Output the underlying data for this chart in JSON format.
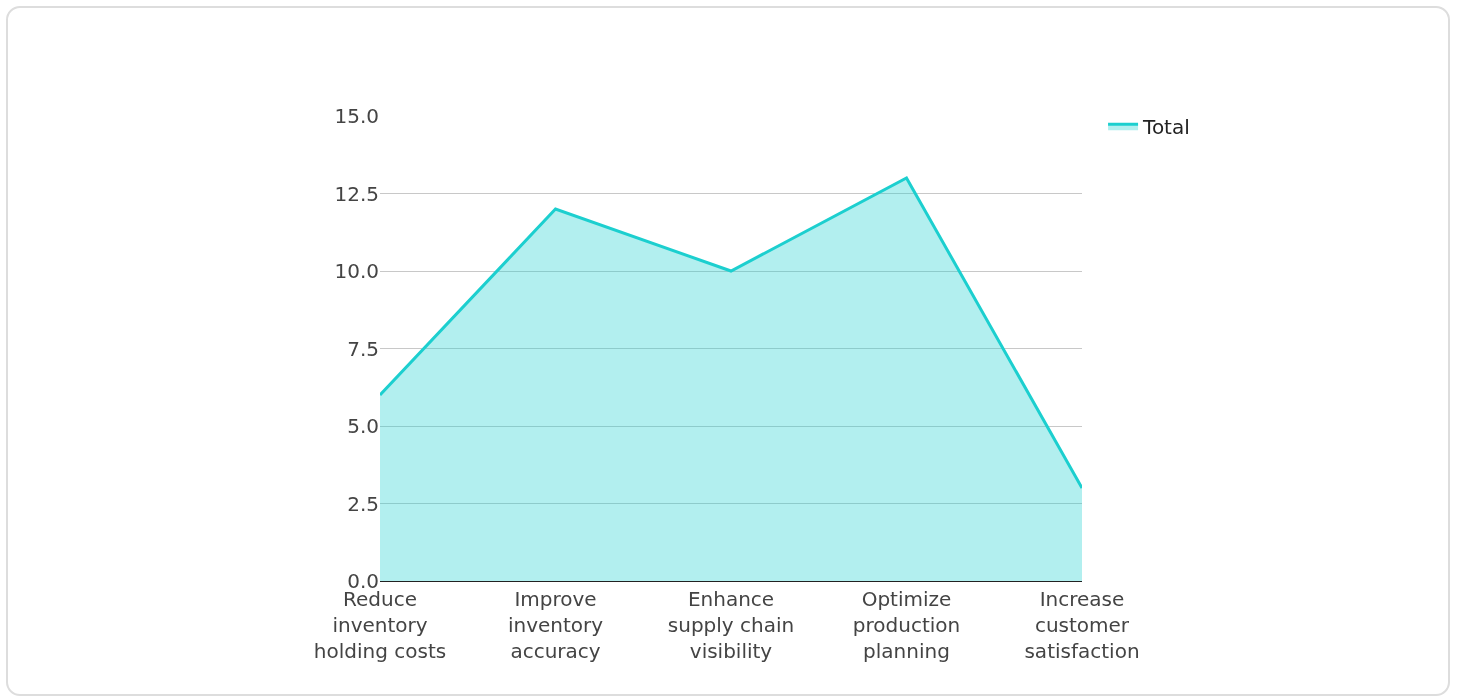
{
  "chart_data": {
    "type": "area",
    "categories": [
      "Reduce inventory holding costs",
      "Improve inventory accuracy",
      "Enhance supply chain visibility",
      "Optimize production planning",
      "Increase customer satisfaction"
    ],
    "series": [
      {
        "name": "Total",
        "color": "#1ccfcf",
        "values": [
          6,
          12,
          10,
          13,
          3
        ]
      }
    ],
    "ylim": [
      0,
      15
    ],
    "yticks": [
      {
        "value": 0,
        "label": "0.0"
      },
      {
        "value": 2.5,
        "label": "2.5"
      },
      {
        "value": 5,
        "label": "5.0"
      },
      {
        "value": 7.5,
        "label": "7.5"
      },
      {
        "value": 10,
        "label": "10.0"
      },
      {
        "value": 12.5,
        "label": "12.5"
      },
      {
        "value": 15,
        "label": "15.0"
      }
    ],
    "grid": "y",
    "legend": "top right",
    "marker": "none",
    "line_style": "solid"
  }
}
